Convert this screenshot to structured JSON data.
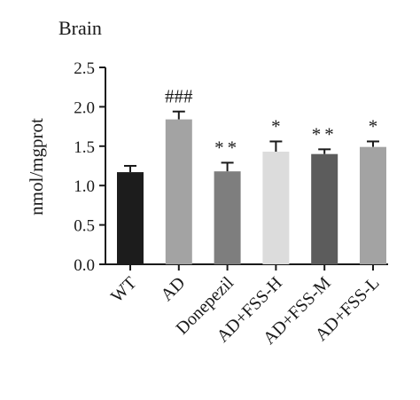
{
  "chart_data": {
    "type": "bar",
    "title": "Brain",
    "xlabel": "",
    "ylabel": "nmol/mgprot",
    "ylim": [
      0,
      2.5
    ],
    "yticks": [
      "0.0",
      "0.5",
      "1.0",
      "1.5",
      "2.0",
      "2.5"
    ],
    "grid": false,
    "categories": [
      "WT",
      "AD",
      "Donepezil",
      "AD+FSS-H",
      "AD+FSS-M",
      "AD+FSS-L"
    ],
    "values": [
      1.17,
      1.84,
      1.18,
      1.43,
      1.4,
      1.49
    ],
    "errors": [
      0.08,
      0.1,
      0.11,
      0.13,
      0.06,
      0.07
    ],
    "annotations": [
      "",
      "###",
      "**",
      "*",
      "**",
      "*"
    ],
    "colors": [
      "#1c1c1c",
      "#a3a3a3",
      "#7e7e7e",
      "#dcdcdc",
      "#5c5c5c",
      "#a3a3a3"
    ]
  }
}
